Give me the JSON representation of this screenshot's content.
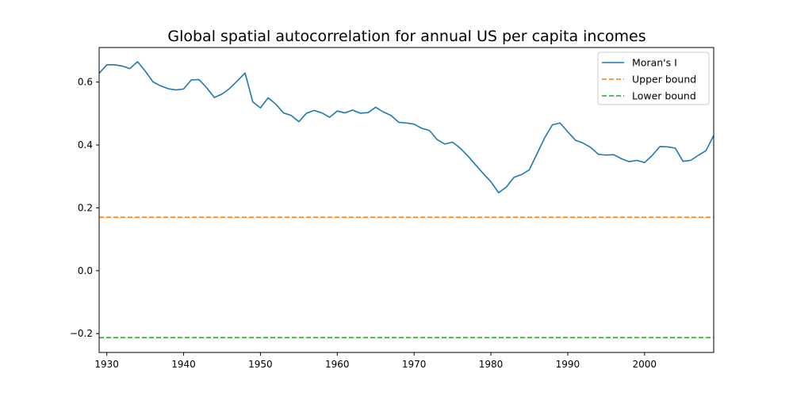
{
  "chart_data": {
    "type": "line",
    "title": "Global spatial autocorrelation for annual US per capita incomes",
    "xlabel": "",
    "ylabel": "",
    "xlim": [
      1929,
      2009
    ],
    "ylim": [
      -0.26,
      0.71
    ],
    "x_ticks": [
      1930,
      1940,
      1950,
      1960,
      1970,
      1980,
      1990,
      2000
    ],
    "y_ticks": [
      -0.2,
      0.0,
      0.2,
      0.4,
      0.6
    ],
    "y_tick_labels": [
      "−0.2",
      "0.0",
      "0.2",
      "0.4",
      "0.6"
    ],
    "grid": false,
    "legend_position": "top-right",
    "x": [
      1929,
      1930,
      1931,
      1932,
      1933,
      1934,
      1935,
      1936,
      1937,
      1938,
      1939,
      1940,
      1941,
      1942,
      1943,
      1944,
      1945,
      1946,
      1947,
      1948,
      1949,
      1950,
      1951,
      1952,
      1953,
      1954,
      1955,
      1956,
      1957,
      1958,
      1959,
      1960,
      1961,
      1962,
      1963,
      1964,
      1965,
      1966,
      1967,
      1968,
      1969,
      1970,
      1971,
      1972,
      1973,
      1974,
      1975,
      1976,
      1977,
      1978,
      1979,
      1980,
      1981,
      1982,
      1983,
      1984,
      1985,
      1986,
      1987,
      1988,
      1989,
      1990,
      1991,
      1992,
      1993,
      1994,
      1995,
      1996,
      1997,
      1998,
      1999,
      2000,
      2001,
      2002,
      2003,
      2004,
      2005,
      2006,
      2007,
      2008,
      2009
    ],
    "series": [
      {
        "name": "Moran's I",
        "color": "#1f77b4",
        "style": "solid",
        "values": [
          0.628,
          0.655,
          0.655,
          0.651,
          0.643,
          0.665,
          0.635,
          0.601,
          0.588,
          0.579,
          0.575,
          0.578,
          0.607,
          0.608,
          0.582,
          0.551,
          0.562,
          0.58,
          0.604,
          0.629,
          0.537,
          0.518,
          0.55,
          0.53,
          0.502,
          0.494,
          0.474,
          0.501,
          0.51,
          0.502,
          0.488,
          0.508,
          0.502,
          0.511,
          0.501,
          0.503,
          0.52,
          0.505,
          0.494,
          0.472,
          0.47,
          0.466,
          0.453,
          0.446,
          0.417,
          0.403,
          0.409,
          0.39,
          0.365,
          0.337,
          0.309,
          0.283,
          0.248,
          0.266,
          0.297,
          0.306,
          0.321,
          0.372,
          0.423,
          0.464,
          0.47,
          0.442,
          0.415,
          0.406,
          0.392,
          0.37,
          0.368,
          0.369,
          0.356,
          0.347,
          0.351,
          0.344,
          0.367,
          0.395,
          0.394,
          0.39,
          0.348,
          0.351,
          0.367,
          0.382,
          0.43
        ]
      },
      {
        "name": "Upper bound",
        "color": "#ff7f0e",
        "style": "dashed",
        "constant": 0.17
      },
      {
        "name": "Lower bound",
        "color": "#2ca02c",
        "style": "dashed",
        "constant": -0.213
      }
    ]
  }
}
